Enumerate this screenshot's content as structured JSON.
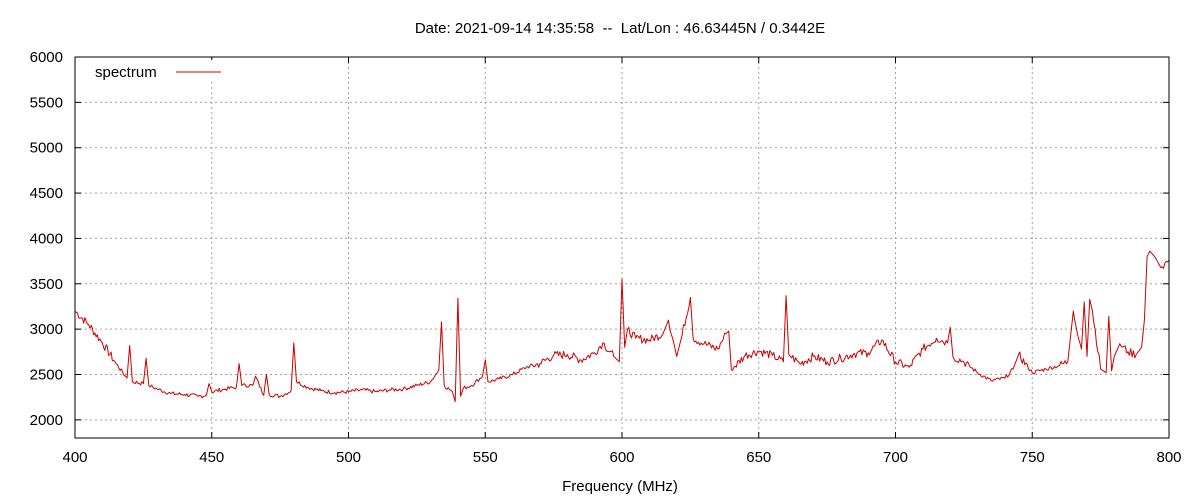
{
  "chart_data": {
    "type": "line",
    "title": "Date: 2021-09-14 14:35:58  --  Lat/Lon : 46.63445N / 0.3442E",
    "xlabel": "Frequency (MHz)",
    "ylabel": "",
    "xlim": [
      400,
      800
    ],
    "ylim": [
      1800,
      6000
    ],
    "xticks": [
      400,
      450,
      500,
      550,
      600,
      650,
      700,
      750,
      800
    ],
    "yticks": [
      2000,
      2500,
      3000,
      3500,
      4000,
      4500,
      5000,
      5500,
      6000
    ],
    "grid": true,
    "legend_position": "top-left",
    "colors": {
      "series": "#cc0000"
    },
    "series": [
      {
        "name": "spectrum",
        "x": [
          400,
          405,
          410,
          415,
          419,
          420,
          421,
          425,
          426,
          427,
          430,
          435,
          440,
          445,
          448,
          449,
          450,
          455,
          459,
          460,
          461,
          465,
          466,
          469,
          470,
          471,
          475,
          479,
          480,
          481,
          485,
          490,
          495,
          500,
          505,
          510,
          515,
          520,
          525,
          530,
          533,
          534,
          535,
          538,
          539,
          540,
          541,
          542,
          545,
          549,
          550,
          551,
          555,
          560,
          565,
          570,
          575,
          580,
          585,
          590,
          593,
          597,
          599,
          600,
          601,
          602,
          605,
          610,
          615,
          617,
          620,
          622,
          625,
          626,
          630,
          635,
          638,
          639,
          640,
          645,
          650,
          655,
          659,
          660,
          661,
          665,
          670,
          675,
          680,
          685,
          690,
          695,
          700,
          705,
          710,
          715,
          719,
          720,
          721,
          725,
          730,
          735,
          740,
          743,
          745,
          750,
          755,
          760,
          763,
          765,
          768,
          769,
          770,
          771,
          772,
          775,
          777,
          778,
          779,
          780,
          782,
          785,
          788,
          790,
          791,
          792,
          793,
          795,
          797,
          800
        ],
        "values": [
          3200,
          3050,
          2850,
          2620,
          2460,
          2820,
          2420,
          2400,
          2680,
          2380,
          2340,
          2290,
          2280,
          2260,
          2270,
          2400,
          2310,
          2340,
          2360,
          2620,
          2380,
          2380,
          2480,
          2270,
          2500,
          2280,
          2260,
          2320,
          2850,
          2420,
          2360,
          2320,
          2300,
          2310,
          2330,
          2310,
          2330,
          2340,
          2380,
          2420,
          2550,
          3080,
          2380,
          2310,
          2200,
          3340,
          2260,
          2350,
          2380,
          2480,
          2660,
          2420,
          2450,
          2500,
          2580,
          2620,
          2710,
          2720,
          2660,
          2740,
          2850,
          2700,
          2640,
          3550,
          2800,
          3000,
          2900,
          2880,
          2950,
          3100,
          2700,
          2940,
          3350,
          2900,
          2840,
          2780,
          2950,
          2980,
          2550,
          2710,
          2760,
          2710,
          2640,
          3370,
          2720,
          2620,
          2700,
          2640,
          2680,
          2730,
          2740,
          2880,
          2640,
          2580,
          2780,
          2900,
          2850,
          3020,
          2700,
          2640,
          2520,
          2430,
          2460,
          2560,
          2720,
          2520,
          2560,
          2600,
          2640,
          3200,
          2780,
          3300,
          2700,
          3330,
          3200,
          2560,
          2520,
          3140,
          2540,
          2700,
          2840,
          2750,
          2720,
          2800,
          3100,
          3800,
          3860,
          3790,
          3680,
          3760
        ]
      }
    ]
  }
}
